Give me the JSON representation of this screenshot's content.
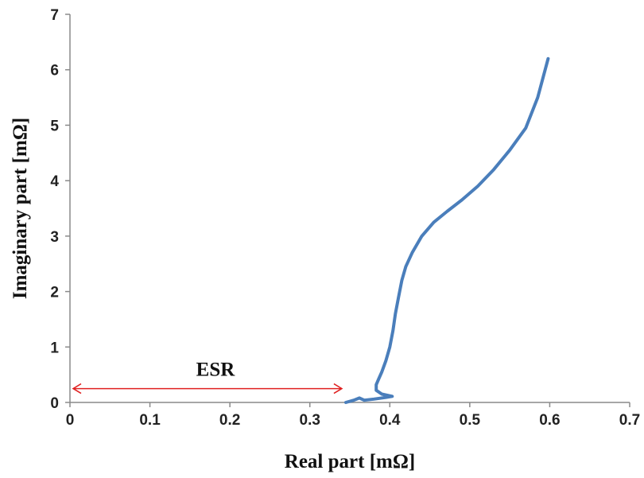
{
  "chart_data": {
    "type": "line",
    "xlabel": "Real part  [mΩ]",
    "ylabel": "Imaginary  part  [mΩ]",
    "xlim": [
      0,
      0.7
    ],
    "ylim": [
      0,
      7
    ],
    "x_ticks": [
      "0",
      "0.1",
      "0.2",
      "0.3",
      "0.4",
      "0.5",
      "0.6",
      "0.7"
    ],
    "y_ticks": [
      "0",
      "1",
      "2",
      "3",
      "4",
      "5",
      "6",
      "7"
    ],
    "grid": false,
    "series": [
      {
        "color": "#4a7ebb",
        "points": [
          [
            0.345,
            0.0
          ],
          [
            0.355,
            0.04
          ],
          [
            0.362,
            0.08
          ],
          [
            0.368,
            0.04
          ],
          [
            0.38,
            0.06
          ],
          [
            0.395,
            0.09
          ],
          [
            0.403,
            0.11
          ],
          [
            0.39,
            0.15
          ],
          [
            0.383,
            0.22
          ],
          [
            0.383,
            0.32
          ],
          [
            0.386,
            0.42
          ],
          [
            0.39,
            0.55
          ],
          [
            0.395,
            0.75
          ],
          [
            0.4,
            1.0
          ],
          [
            0.404,
            1.3
          ],
          [
            0.407,
            1.6
          ],
          [
            0.411,
            1.9
          ],
          [
            0.415,
            2.2
          ],
          [
            0.42,
            2.45
          ],
          [
            0.428,
            2.7
          ],
          [
            0.44,
            3.0
          ],
          [
            0.455,
            3.25
          ],
          [
            0.472,
            3.45
          ],
          [
            0.49,
            3.65
          ],
          [
            0.51,
            3.9
          ],
          [
            0.53,
            4.2
          ],
          [
            0.55,
            4.55
          ],
          [
            0.57,
            4.95
          ],
          [
            0.585,
            5.5
          ],
          [
            0.598,
            6.2
          ]
        ]
      }
    ],
    "annotations": [
      {
        "text": "ESR",
        "type": "double-arrow",
        "color": "#e02020",
        "from_x": 0.0,
        "to_x": 0.34,
        "y": 0.25
      }
    ]
  }
}
